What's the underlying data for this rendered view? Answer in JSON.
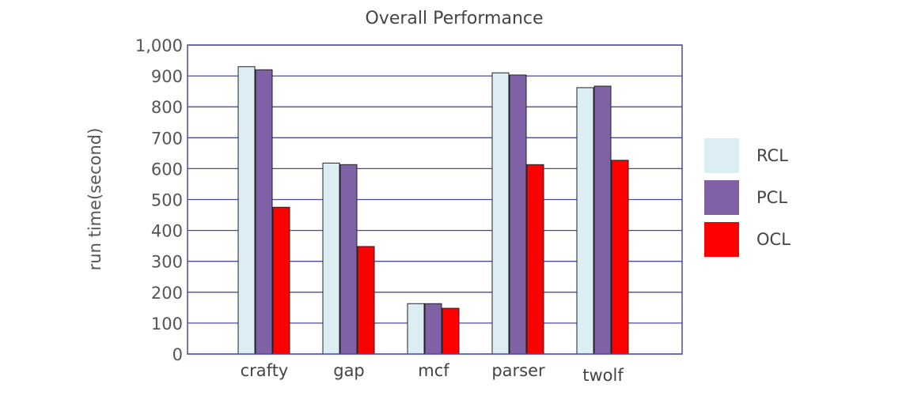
{
  "chart_data": {
    "type": "bar",
    "title": "Overall Performance",
    "xlabel": "",
    "ylabel": "run time(second)",
    "categories": [
      "crafty",
      "gap",
      "mcf",
      "parser",
      "twolf"
    ],
    "series": [
      {
        "name": "RCL",
        "values": [
          930,
          618,
          163,
          910,
          862
        ],
        "color": "#dcedf3"
      },
      {
        "name": "PCL",
        "values": [
          920,
          613,
          163,
          903,
          867
        ],
        "color": "#7f62a6"
      },
      {
        "name": "OCL",
        "values": [
          475,
          348,
          148,
          613,
          627
        ],
        "color": "#ff0000"
      }
    ],
    "ylim": [
      0,
      1000
    ],
    "yticks": [
      0,
      100,
      200,
      300,
      400,
      500,
      600,
      700,
      800,
      900,
      1000
    ],
    "ytick_labels": [
      "0",
      "100",
      "200",
      "300",
      "400",
      "500",
      "600",
      "700",
      "800",
      "900",
      "1,000"
    ],
    "grid": true,
    "legend_position": "right",
    "colors": {
      "grid": "#4a4a9a",
      "frame": "#4a4a9a"
    }
  }
}
